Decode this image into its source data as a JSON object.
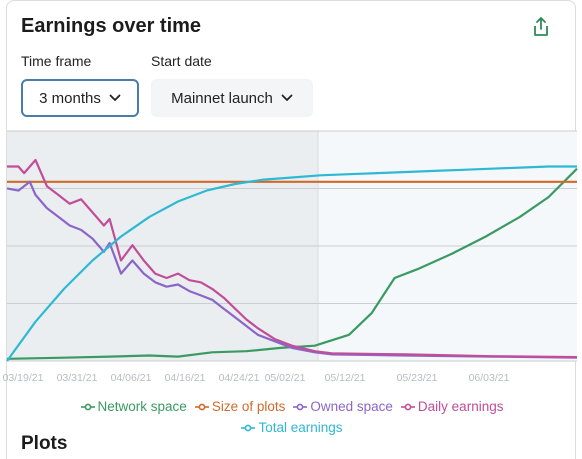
{
  "header": {
    "title": "Earnings over time"
  },
  "controls": {
    "timeframe": {
      "label": "Time frame",
      "value": "3 months"
    },
    "startdate": {
      "label": "Start date",
      "value": "Mainnet launch"
    }
  },
  "chart_data": {
    "type": "line",
    "x_ticks": [
      "03/19/21",
      "03/31/21",
      "04/06/21",
      "04/16/21",
      "04/24/21",
      "05/02/21",
      "05/12/21",
      "05/23/21",
      "06/03/21"
    ],
    "shaded_region_end": "05/07/21",
    "series": [
      {
        "name": "Network space",
        "color": "#3a9a62",
        "points": [
          [
            0,
            0.01
          ],
          [
            10,
            0.015
          ],
          [
            18,
            0.02
          ],
          [
            25,
            0.025
          ],
          [
            30,
            0.02
          ],
          [
            36,
            0.04
          ],
          [
            42,
            0.045
          ],
          [
            48,
            0.06
          ],
          [
            54,
            0.07
          ],
          [
            60,
            0.12
          ],
          [
            64,
            0.22
          ],
          [
            66,
            0.3
          ],
          [
            68,
            0.38
          ],
          [
            72,
            0.42
          ],
          [
            78,
            0.49
          ],
          [
            84,
            0.57
          ],
          [
            90,
            0.66
          ],
          [
            95,
            0.75
          ],
          [
            100,
            0.88
          ]
        ]
      },
      {
        "name": "Size of plots",
        "color": "#d06a2a",
        "points": [
          [
            0,
            0.82
          ],
          [
            100,
            0.82
          ]
        ]
      },
      {
        "name": "Owned space",
        "color": "#8a66c8",
        "points": [
          [
            0,
            0.79
          ],
          [
            2,
            0.78
          ],
          [
            4,
            0.82
          ],
          [
            5,
            0.76
          ],
          [
            7,
            0.7
          ],
          [
            9,
            0.66
          ],
          [
            11,
            0.62
          ],
          [
            13,
            0.6
          ],
          [
            15,
            0.56
          ],
          [
            17,
            0.5
          ],
          [
            18,
            0.54
          ],
          [
            20,
            0.4
          ],
          [
            22,
            0.46
          ],
          [
            24,
            0.4
          ],
          [
            26,
            0.36
          ],
          [
            28,
            0.34
          ],
          [
            30,
            0.35
          ],
          [
            32,
            0.32
          ],
          [
            34,
            0.3
          ],
          [
            36,
            0.28
          ],
          [
            38,
            0.24
          ],
          [
            40,
            0.2
          ],
          [
            42,
            0.16
          ],
          [
            44,
            0.12
          ],
          [
            47,
            0.09
          ],
          [
            50,
            0.06
          ],
          [
            54,
            0.04
          ],
          [
            57,
            0.03
          ],
          [
            70,
            0.025
          ],
          [
            85,
            0.02
          ],
          [
            100,
            0.015
          ]
        ]
      },
      {
        "name": "Daily earnings",
        "color": "#c04e98",
        "points": [
          [
            0,
            0.89
          ],
          [
            2,
            0.89
          ],
          [
            3,
            0.86
          ],
          [
            5,
            0.92
          ],
          [
            7,
            0.8
          ],
          [
            9,
            0.76
          ],
          [
            11,
            0.72
          ],
          [
            13,
            0.74
          ],
          [
            15,
            0.68
          ],
          [
            17,
            0.62
          ],
          [
            18,
            0.65
          ],
          [
            20,
            0.46
          ],
          [
            22,
            0.53
          ],
          [
            24,
            0.46
          ],
          [
            26,
            0.4
          ],
          [
            28,
            0.38
          ],
          [
            30,
            0.4
          ],
          [
            32,
            0.37
          ],
          [
            34,
            0.36
          ],
          [
            36,
            0.33
          ],
          [
            38,
            0.29
          ],
          [
            40,
            0.24
          ],
          [
            42,
            0.19
          ],
          [
            44,
            0.15
          ],
          [
            47,
            0.1
          ],
          [
            50,
            0.07
          ],
          [
            54,
            0.045
          ],
          [
            57,
            0.035
          ],
          [
            70,
            0.03
          ],
          [
            85,
            0.022
          ],
          [
            100,
            0.018
          ]
        ]
      },
      {
        "name": "Total earnings",
        "color": "#2fb8d4",
        "points": [
          [
            0,
            0.0
          ],
          [
            5,
            0.18
          ],
          [
            10,
            0.33
          ],
          [
            15,
            0.46
          ],
          [
            20,
            0.57
          ],
          [
            25,
            0.66
          ],
          [
            30,
            0.73
          ],
          [
            35,
            0.78
          ],
          [
            40,
            0.81
          ],
          [
            45,
            0.83
          ],
          [
            50,
            0.84
          ],
          [
            55,
            0.85
          ],
          [
            60,
            0.855
          ],
          [
            65,
            0.86
          ],
          [
            70,
            0.865
          ],
          [
            75,
            0.87
          ],
          [
            80,
            0.875
          ],
          [
            85,
            0.88
          ],
          [
            90,
            0.885
          ],
          [
            95,
            0.89
          ],
          [
            100,
            0.89
          ]
        ]
      }
    ]
  },
  "legend": {
    "row1": [
      "Network space",
      "Size of plots",
      "Owned space",
      "Daily earnings"
    ],
    "row2": [
      "Total earnings"
    ]
  },
  "section": {
    "plots_title": "Plots"
  }
}
